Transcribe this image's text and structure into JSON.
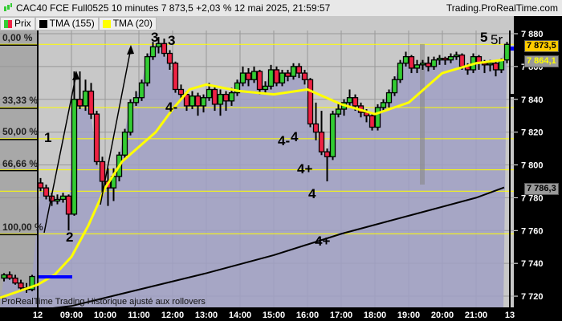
{
  "header": {
    "title": "CAC40 FCE Full0525 10 minutes 7 873,5 +2,03 % 12 mai 2025, 21:59:57",
    "site": "Trading.ProRealTime.com",
    "icon": "candlestick-icon"
  },
  "legend": [
    {
      "label": "Prix",
      "colors": [
        "#33cc33",
        "#ee2244"
      ]
    },
    {
      "label": "TMA (155)",
      "colors": [
        "#000000"
      ]
    },
    {
      "label": "TMA (20)",
      "colors": [
        "#ffff00"
      ]
    }
  ],
  "footer": "ProRealTime Trading  Historique ajusté aux rollovers",
  "chart_data": {
    "type": "candlestick",
    "interval": "10 minutes",
    "ylim": [
      7715,
      7890
    ],
    "y_ticks": [
      "7 880",
      "7 860",
      "7 840",
      "7 820",
      "7 800",
      "7 780",
      "7 760",
      "7 740",
      "7 720"
    ],
    "y_tick_values": [
      7880,
      7860,
      7840,
      7820,
      7800,
      7780,
      7760,
      7740,
      7720
    ],
    "x_ticks": [
      "12",
      "09:00",
      "10:00",
      "11:00",
      "12:00",
      "13:00",
      "14:00",
      "15:00",
      "16:00",
      "17:00",
      "18:00",
      "19:00",
      "20:00",
      "21:00",
      "13"
    ],
    "x_tick_times": [
      "08:00",
      "09:00",
      "10:00",
      "11:00",
      "12:00",
      "13:00",
      "14:00",
      "15:00",
      "16:00",
      "17:00",
      "18:00",
      "19:00",
      "20:00",
      "21:00",
      "22:00"
    ],
    "grid": true,
    "colors": {
      "up": "#33cc33",
      "down": "#ee2244",
      "tma20": "#ffff00",
      "tma155": "#000000",
      "area": "#a0a0c4",
      "fib": "#ffff00"
    },
    "previous_day_bars": [
      [
        7731,
        7734,
        7729,
        7733
      ],
      [
        7733,
        7735,
        7730,
        7731
      ],
      [
        7731,
        7733,
        7727,
        7728
      ],
      [
        7728,
        7730,
        7724,
        7725
      ],
      [
        7725,
        7728,
        7722,
        7724
      ],
      [
        7724,
        7733,
        7723,
        7732
      ]
    ],
    "day_start": "08:00",
    "bars_ohlc": [
      [
        7789,
        7792,
        7784,
        7786
      ],
      [
        7786,
        7788,
        7779,
        7781
      ],
      [
        7781,
        7783,
        7775,
        7778
      ],
      [
        7778,
        7782,
        7776,
        7779
      ],
      [
        7779,
        7783,
        7777,
        7781
      ],
      [
        7781,
        7782,
        7760,
        7770
      ],
      [
        7770,
        7857,
        7769,
        7840
      ],
      [
        7840,
        7857,
        7834,
        7836
      ],
      [
        7836,
        7852,
        7833,
        7845
      ],
      [
        7845,
        7850,
        7828,
        7831
      ],
      [
        7831,
        7833,
        7800,
        7802
      ],
      [
        7802,
        7805,
        7781,
        7790
      ],
      [
        7790,
        7798,
        7775,
        7786
      ],
      [
        7786,
        7798,
        7778,
        7793
      ],
      [
        7793,
        7808,
        7790,
        7806
      ],
      [
        7806,
        7822,
        7804,
        7820
      ],
      [
        7820,
        7840,
        7818,
        7838
      ],
      [
        7838,
        7845,
        7836,
        7841
      ],
      [
        7841,
        7852,
        7839,
        7850
      ],
      [
        7850,
        7868,
        7848,
        7866
      ],
      [
        7866,
        7875,
        7864,
        7872
      ],
      [
        7872,
        7878,
        7868,
        7874
      ],
      [
        7874,
        7877,
        7866,
        7868
      ],
      [
        7868,
        7870,
        7858,
        7862
      ],
      [
        7862,
        7863,
        7844,
        7846
      ],
      [
        7846,
        7849,
        7840,
        7843
      ],
      [
        7843,
        7845,
        7833,
        7836
      ],
      [
        7836,
        7845,
        7834,
        7842
      ],
      [
        7842,
        7844,
        7830,
        7836
      ],
      [
        7836,
        7843,
        7832,
        7841
      ],
      [
        7841,
        7850,
        7839,
        7846
      ],
      [
        7846,
        7848,
        7833,
        7837
      ],
      [
        7837,
        7846,
        7830,
        7843
      ],
      [
        7843,
        7845,
        7833,
        7839
      ],
      [
        7839,
        7847,
        7836,
        7844
      ],
      [
        7844,
        7852,
        7842,
        7850
      ],
      [
        7850,
        7860,
        7848,
        7856
      ],
      [
        7856,
        7859,
        7848,
        7852
      ],
      [
        7852,
        7860,
        7850,
        7857
      ],
      [
        7857,
        7858,
        7843,
        7846
      ],
      [
        7846,
        7851,
        7843,
        7848
      ],
      [
        7848,
        7861,
        7846,
        7858
      ],
      [
        7858,
        7860,
        7848,
        7850
      ],
      [
        7850,
        7858,
        7848,
        7856
      ],
      [
        7856,
        7858,
        7851,
        7854
      ],
      [
        7854,
        7862,
        7852,
        7860
      ],
      [
        7860,
        7862,
        7853,
        7856
      ],
      [
        7856,
        7858,
        7849,
        7852
      ],
      [
        7852,
        7853,
        7823,
        7825
      ],
      [
        7825,
        7838,
        7815,
        7820
      ],
      [
        7820,
        7833,
        7806,
        7808
      ],
      [
        7808,
        7810,
        7790,
        7805
      ],
      [
        7805,
        7833,
        7803,
        7831
      ],
      [
        7831,
        7838,
        7829,
        7834
      ],
      [
        7834,
        7840,
        7830,
        7838
      ],
      [
        7838,
        7846,
        7835,
        7841
      ],
      [
        7841,
        7843,
        7833,
        7836
      ],
      [
        7836,
        7838,
        7829,
        7832
      ],
      [
        7832,
        7834,
        7826,
        7830
      ],
      [
        7830,
        7832,
        7821,
        7823
      ],
      [
        7823,
        7837,
        7821,
        7835
      ],
      [
        7835,
        7840,
        7833,
        7838
      ],
      [
        7838,
        7846,
        7835,
        7844
      ],
      [
        7844,
        7854,
        7842,
        7852
      ],
      [
        7852,
        7864,
        7850,
        7862
      ],
      [
        7862,
        7869,
        7860,
        7866
      ],
      [
        7866,
        7867,
        7856,
        7859
      ],
      [
        7859,
        7864,
        7856,
        7861
      ],
      [
        7861,
        7864,
        7858,
        7862
      ],
      [
        7862,
        7866,
        7857,
        7860
      ],
      [
        7860,
        7866,
        7858,
        7864
      ],
      [
        7864,
        7867,
        7861,
        7865
      ],
      [
        7865,
        7866,
        7861,
        7864
      ],
      [
        7864,
        7868,
        7862,
        7866
      ],
      [
        7866,
        7869,
        7864,
        7867
      ],
      [
        7867,
        7868,
        7858,
        7860
      ],
      [
        7860,
        7862,
        7855,
        7858
      ],
      [
        7858,
        7868,
        7856,
        7866
      ],
      [
        7866,
        7867,
        7858,
        7862
      ],
      [
        7862,
        7864,
        7856,
        7861
      ],
      [
        7861,
        7864,
        7857,
        7862
      ],
      [
        7862,
        7863,
        7854,
        7858
      ],
      [
        7858,
        7865,
        7856,
        7864
      ],
      [
        7864,
        7875,
        7862,
        7873.5
      ]
    ],
    "tma20_start": 7719,
    "tma20": [
      [
        "08:00",
        7727
      ],
      [
        "08:30",
        7733
      ],
      [
        "09:00",
        7744
      ],
      [
        "09:30",
        7763
      ],
      [
        "10:00",
        7786
      ],
      [
        "10:30",
        7802
      ],
      [
        "11:00",
        7811
      ],
      [
        "11:30",
        7820
      ],
      [
        "12:00",
        7834
      ],
      [
        "12:30",
        7846
      ],
      [
        "13:00",
        7849
      ],
      [
        "14:00",
        7845
      ],
      [
        "15:00",
        7843
      ],
      [
        "16:00",
        7846
      ],
      [
        "17:00",
        7837
      ],
      [
        "18:00",
        7831
      ],
      [
        "19:00",
        7838
      ],
      [
        "20:00",
        7856
      ],
      [
        "21:00",
        7862
      ],
      [
        "21:50",
        7864.1
      ]
    ],
    "tma155": [
      [
        "08:10",
        7712
      ],
      [
        "09:00",
        7714
      ],
      [
        "11:00",
        7724
      ],
      [
        "13:00",
        7734
      ],
      [
        "15:00",
        7745
      ],
      [
        "17:00",
        7758
      ],
      [
        "19:00",
        7769
      ],
      [
        "21:00",
        7780
      ],
      [
        "21:50",
        7786.3
      ]
    ],
    "fib_levels": [
      {
        "label": "0,00 %",
        "value": 7873.5
      },
      {
        "label": "33,33 %",
        "value": 7835
      },
      {
        "label": "50,00 %",
        "value": 7816
      },
      {
        "label": "66,66 %",
        "value": 7797
      },
      {
        "label": "100,00 %",
        "value": 7758
      }
    ],
    "extra_level": 7784,
    "price_labels": [
      {
        "text": "7 873,5",
        "bg": "#ffcc00",
        "fg": "#000000",
        "value": 7873.5
      },
      {
        "text": "7 864,1",
        "bg": "#999999",
        "fg": "#ffff00",
        "value": 7864.1
      },
      {
        "text": "7 786,3",
        "bg": "#999999",
        "fg": "#000000",
        "value": 7786.3
      }
    ],
    "annotations": [
      {
        "text": "1",
        "color": "#ff2020"
      },
      {
        "text": "2",
        "color": "#ff2020"
      },
      {
        "text": "3",
        "color": "#ff2020"
      },
      {
        "text": "3",
        "color": "#000000"
      },
      {
        "text": "4-",
        "color": "#ff2020"
      },
      {
        "text": "4-",
        "color": "#000000"
      },
      {
        "text": "4",
        "color": "#ff2020"
      },
      {
        "text": "4+",
        "color": "#ff2020"
      },
      {
        "text": "4",
        "color": "#000000"
      },
      {
        "text": "4+",
        "color": "#000000"
      },
      {
        "text": "5",
        "color": "#ff2020"
      },
      {
        "text": "5r",
        "color": "#000000"
      }
    ]
  }
}
